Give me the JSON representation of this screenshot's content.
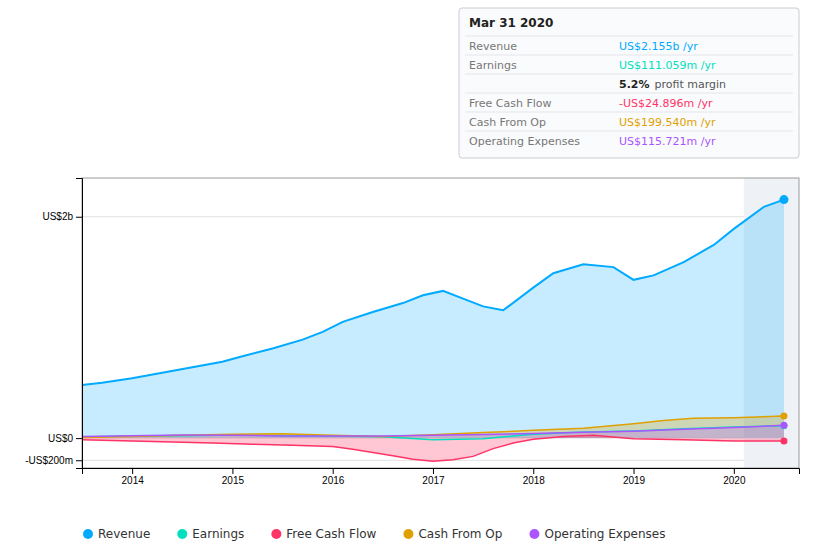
{
  "chart_data": {
    "type": "line",
    "xlim": [
      2013.5,
      2020.65
    ],
    "ylim": [
      -270,
      2350
    ],
    "xticks": [
      2014,
      2015,
      2016,
      2017,
      2018,
      2019,
      2020
    ],
    "yticks": [
      {
        "value": -200,
        "label": "-US$200m"
      },
      {
        "value": 0,
        "label": "US$0"
      },
      {
        "value": 2000,
        "label": "US$2b"
      }
    ],
    "grid": true,
    "legend": "bottom",
    "highlight": [
      2020.1,
      2020.65
    ],
    "series": [
      {
        "name": "Revenue",
        "type": "area",
        "color": "#00aaff",
        "x": [
          2013.5,
          2013.7,
          2014.0,
          2014.3,
          2014.6,
          2014.9,
          2015.1,
          2015.4,
          2015.7,
          2015.9,
          2016.1,
          2016.4,
          2016.7,
          2016.9,
          2017.1,
          2017.3,
          2017.5,
          2017.7,
          2018.0,
          2018.2,
          2018.5,
          2018.8,
          2019.0,
          2019.2,
          2019.5,
          2019.8,
          2020.0,
          2020.3,
          2020.5
        ],
        "values": [
          480,
          500,
          540,
          590,
          640,
          690,
          740,
          810,
          890,
          960,
          1050,
          1140,
          1220,
          1290,
          1330,
          1260,
          1190,
          1155,
          1360,
          1490,
          1570,
          1545,
          1430,
          1470,
          1590,
          1745,
          1890,
          2090,
          2155
        ]
      },
      {
        "name": "Earnings",
        "type": "line",
        "color": "#00e0c0",
        "x": [
          2013.5,
          2014.0,
          2014.5,
          2015.0,
          2015.5,
          2016.0,
          2016.5,
          2017.0,
          2017.5,
          2018.0,
          2018.5,
          2019.0,
          2019.5,
          2020.0,
          2020.5
        ],
        "values": [
          10,
          18,
          22,
          28,
          22,
          18,
          12,
          -15,
          -5,
          35,
          55,
          65,
          85,
          100,
          111
        ]
      },
      {
        "name": "Free Cash Flow",
        "type": "area",
        "color": "#ff3366",
        "x": [
          2013.5,
          2014.0,
          2014.4,
          2014.8,
          2015.2,
          2015.6,
          2016.0,
          2016.2,
          2016.4,
          2016.6,
          2016.8,
          2017.0,
          2017.2,
          2017.4,
          2017.6,
          2017.8,
          2018.0,
          2018.3,
          2018.6,
          2019.0,
          2019.5,
          2020.0,
          2020.5
        ],
        "values": [
          -15,
          -25,
          -35,
          -45,
          -55,
          -65,
          -75,
          -100,
          -130,
          -160,
          -190,
          -210,
          -195,
          -165,
          -95,
          -45,
          -10,
          15,
          25,
          -5,
          -15,
          -25,
          -25
        ]
      },
      {
        "name": "Cash From Op",
        "type": "area",
        "color": "#e0a000",
        "x": [
          2013.5,
          2014.0,
          2014.5,
          2015.0,
          2015.5,
          2016.0,
          2016.5,
          2017.0,
          2017.5,
          2018.0,
          2018.5,
          2019.0,
          2019.3,
          2019.6,
          2020.0,
          2020.5
        ],
        "values": [
          5,
          15,
          25,
          35,
          40,
          25,
          15,
          30,
          50,
          70,
          90,
          130,
          160,
          180,
          185,
          200
        ]
      },
      {
        "name": "Operating Expenses",
        "type": "area",
        "color": "#aa55ff",
        "x": [
          2013.5,
          2014.0,
          2014.5,
          2015.0,
          2015.5,
          2016.0,
          2016.5,
          2017.0,
          2017.5,
          2018.0,
          2018.5,
          2019.0,
          2019.5,
          2020.0,
          2020.5
        ],
        "values": [
          15,
          22,
          28,
          25,
          20,
          18,
          20,
          25,
          32,
          42,
          52,
          62,
          80,
          95,
          116
        ]
      }
    ],
    "annotations": [
      {
        "title": "Mar 31 2020",
        "rows": [
          {
            "label": "Revenue",
            "value": "US$2.155b /yr"
          },
          {
            "label": "Earnings",
            "value": "US$111.059m /yr"
          },
          {
            "value": "5.2%",
            "note": "profit margin"
          },
          {
            "label": "Free Cash Flow",
            "value": "-US$24.896m /yr"
          },
          {
            "label": "Cash From Op",
            "value": "US$199.540m /yr"
          },
          {
            "label": "Operating Expenses",
            "value": "US$115.721m /yr"
          }
        ]
      }
    ]
  }
}
